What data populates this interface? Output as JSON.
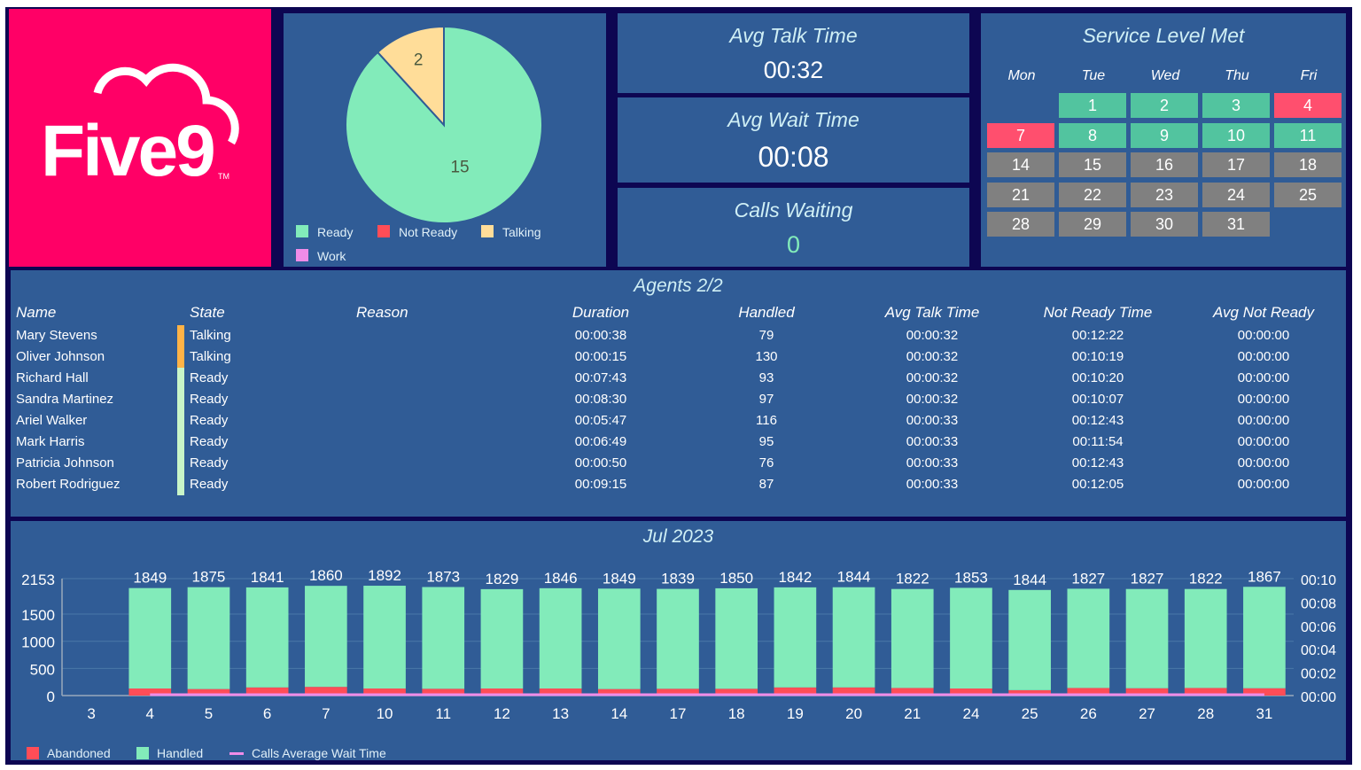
{
  "brand": {
    "logo_text": "Five9",
    "trademark": "TM",
    "color": "#ff0066"
  },
  "pie": {
    "slices": [
      {
        "label": "Ready",
        "value": 15,
        "color": "#82ebba"
      },
      {
        "label": "Not Ready",
        "value": 0,
        "color": "#ff4d57"
      },
      {
        "label": "Talking",
        "value": 2,
        "color": "#ffdd99"
      },
      {
        "label": "Work",
        "value": 0,
        "color": "#f08ce8"
      }
    ]
  },
  "kpis": [
    {
      "title": "Avg Talk Time",
      "value": "00:32"
    },
    {
      "title": "Avg Wait Time",
      "value": "00:08"
    },
    {
      "title": "Calls Waiting",
      "value": "0",
      "color": "#82ebba"
    }
  ],
  "calendar": {
    "title": "Service Level Met",
    "days_of_week": [
      "Mon",
      "Tue",
      "Wed",
      "Thu",
      "Fri"
    ],
    "status_colors": {
      "met": "#52c49f",
      "missed": "#ff4f6e",
      "future": "#808080"
    },
    "days": [
      {
        "d": "1",
        "s": "met"
      },
      {
        "d": "2",
        "s": "met"
      },
      {
        "d": "3",
        "s": "met"
      },
      {
        "d": "4",
        "s": "missed"
      },
      {
        "d": "7",
        "s": "missed"
      },
      {
        "d": "8",
        "s": "met"
      },
      {
        "d": "9",
        "s": "met"
      },
      {
        "d": "10",
        "s": "met"
      },
      {
        "d": "11",
        "s": "met"
      },
      {
        "d": "14",
        "s": "future"
      },
      {
        "d": "15",
        "s": "future"
      },
      {
        "d": "16",
        "s": "future"
      },
      {
        "d": "17",
        "s": "future"
      },
      {
        "d": "18",
        "s": "future"
      },
      {
        "d": "21",
        "s": "future"
      },
      {
        "d": "22",
        "s": "future"
      },
      {
        "d": "23",
        "s": "future"
      },
      {
        "d": "24",
        "s": "future"
      },
      {
        "d": "25",
        "s": "future"
      },
      {
        "d": "28",
        "s": "future"
      },
      {
        "d": "29",
        "s": "future"
      },
      {
        "d": "30",
        "s": "future"
      },
      {
        "d": "31",
        "s": "future"
      }
    ]
  },
  "agents": {
    "title": "Agents 2/2",
    "columns": [
      "Name",
      "State",
      "Reason",
      "Duration",
      "Handled",
      "Avg Talk Time",
      "Not Ready Time",
      "Avg Not Ready"
    ],
    "state_colors": {
      "Talking": "#ffb347",
      "Ready": "#c8f5c8"
    },
    "rows": [
      [
        "Mary Stevens",
        "Talking",
        "",
        "00:00:38",
        "79",
        "00:00:32",
        "00:12:22",
        "00:00:00"
      ],
      [
        "Oliver Johnson",
        "Talking",
        "",
        "00:00:15",
        "130",
        "00:00:32",
        "00:10:19",
        "00:00:00"
      ],
      [
        "Richard Hall",
        "Ready",
        "",
        "00:07:43",
        "93",
        "00:00:32",
        "00:10:20",
        "00:00:00"
      ],
      [
        "Sandra Martinez",
        "Ready",
        "",
        "00:08:30",
        "97",
        "00:00:32",
        "00:10:07",
        "00:00:00"
      ],
      [
        "Ariel Walker",
        "Ready",
        "",
        "00:05:47",
        "116",
        "00:00:33",
        "00:12:43",
        "00:00:00"
      ],
      [
        "Mark Harris",
        "Ready",
        "",
        "00:06:49",
        "95",
        "00:00:33",
        "00:11:54",
        "00:00:00"
      ],
      [
        "Patricia Johnson",
        "Ready",
        "",
        "00:00:50",
        "76",
        "00:00:33",
        "00:12:43",
        "00:00:00"
      ],
      [
        "Robert Rodriguez",
        "Ready",
        "",
        "00:09:15",
        "87",
        "00:00:33",
        "00:12:05",
        "00:00:00"
      ]
    ]
  },
  "chart_data": {
    "type": "bar",
    "title": "Jul 2023",
    "stacked": true,
    "categories": [
      "3",
      "4",
      "5",
      "6",
      "7",
      "10",
      "11",
      "12",
      "13",
      "14",
      "17",
      "18",
      "19",
      "20",
      "21",
      "24",
      "25",
      "26",
      "27",
      "28",
      "31"
    ],
    "series": [
      {
        "name": "Abandoned",
        "color": "#ff4d57",
        "values": [
          0,
          130,
          120,
          150,
          160,
          130,
          125,
          130,
          130,
          120,
          125,
          125,
          150,
          150,
          140,
          130,
          100,
          140,
          135,
          140,
          135
        ]
      },
      {
        "name": "Handled",
        "color": "#82ebba",
        "values": [
          0,
          1849,
          1875,
          1841,
          1860,
          1892,
          1873,
          1829,
          1846,
          1849,
          1839,
          1850,
          1842,
          1844,
          1822,
          1853,
          1844,
          1827,
          1827,
          1822,
          1867
        ]
      },
      {
        "name": "Calls Average Wait Time",
        "color": "#f08ce8",
        "type": "line",
        "axis": "right",
        "values": [
          null,
          0,
          0,
          0,
          0,
          0,
          0,
          0,
          0,
          0,
          0,
          0,
          0,
          0,
          0,
          0,
          0,
          0,
          0,
          0,
          0
        ]
      }
    ],
    "y_left": {
      "ticks": [
        "0",
        "500",
        "1000",
        "1500",
        "2153"
      ],
      "range": [
        0,
        2153
      ]
    },
    "y_right": {
      "ticks": [
        "00:00",
        "00:02",
        "00:04",
        "00:06",
        "00:08",
        "00:10"
      ],
      "range_seconds": [
        0,
        10
      ]
    },
    "grid": true,
    "legend": "bottom-left"
  }
}
